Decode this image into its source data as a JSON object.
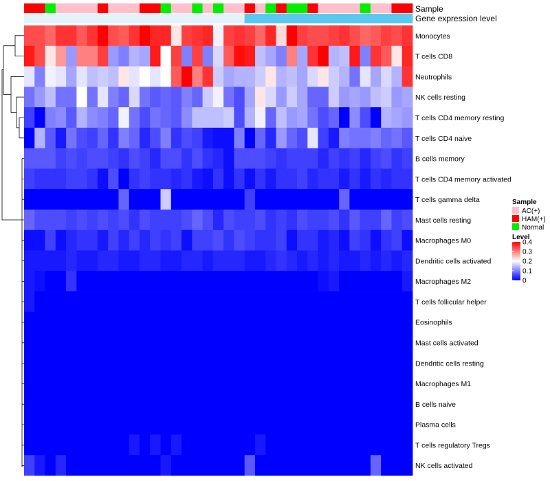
{
  "chart_data": {
    "type": "heatmap",
    "title": "",
    "rows": [
      "Monocytes",
      "T cells CD8",
      "Neutrophils",
      "NK cells resting",
      "T cells CD4 memory resting",
      "T cells CD4 naive",
      "B cells memory",
      "T cells CD4 memory activated",
      "T cells gamma delta",
      "Mast cells resting",
      "Macrophages M0",
      "Dendritic cells activated",
      "Macrophages M2",
      "T cells follicular helper",
      "Eosinophils",
      "Mast cells activated",
      "Dendritic cells resting",
      "Macrophages M1",
      "B cells naive",
      "Plasma cells",
      "T cells regulatory  Tregs",
      "NK cells activated"
    ],
    "annotation_tracks": [
      {
        "name": "Sample",
        "values": [
          "H",
          "H",
          "N",
          "A",
          "A",
          "A",
          "A",
          "H",
          "A",
          "A",
          "A",
          "H",
          "H",
          "N",
          "A",
          "A",
          "N",
          "A",
          "N",
          "A",
          "A",
          "H",
          "A",
          "N",
          "H",
          "N",
          "N",
          "H",
          "A",
          "A",
          "A",
          "A",
          "N",
          "A",
          "A",
          "H",
          "H"
        ]
      },
      {
        "name": "Gene expression level",
        "values": [
          "low",
          "low",
          "low",
          "low",
          "low",
          "low",
          "low",
          "low",
          "low",
          "low",
          "low",
          "low",
          "low",
          "low",
          "low",
          "low",
          "low",
          "low",
          "low",
          "low",
          "low",
          "high",
          "high",
          "high",
          "high",
          "high",
          "high",
          "high",
          "high",
          "high",
          "high",
          "high",
          "high",
          "high",
          "high",
          "high",
          "high"
        ]
      }
    ],
    "annotation_colors": {
      "Sample": {
        "A": "#ffc0cb",
        "H": "#ff0000",
        "N": "#00ee00"
      },
      "Gene expression level": {
        "low": "#e4f3fa",
        "high": "#5bc8ef"
      }
    },
    "values": [
      [
        0.34,
        0.34,
        0.32,
        0.36,
        0.36,
        0.33,
        0.36,
        0.4,
        0.34,
        0.33,
        0.36,
        0.4,
        0.37,
        0.37,
        0.22,
        0.35,
        0.36,
        0.37,
        0.19,
        0.35,
        0.36,
        0.35,
        0.32,
        0.37,
        0.23,
        0.41,
        0.35,
        0.34,
        0.34,
        0.35,
        0.36,
        0.34,
        0.32,
        0.33,
        0.35,
        0.34,
        0.36
      ],
      [
        0.38,
        0.34,
        0.22,
        0.28,
        0.12,
        0.3,
        0.3,
        0.35,
        0.12,
        0.1,
        0.14,
        0.13,
        0.38,
        0.2,
        0.35,
        0.1,
        0.35,
        0.1,
        0.17,
        0.33,
        0.39,
        0.38,
        0.15,
        0.13,
        0.1,
        0.3,
        0.13,
        0.36,
        0.4,
        0.14,
        0.15,
        0.38,
        0.1,
        0.36,
        0.33,
        0.22,
        0.37
      ],
      [
        0.18,
        0.1,
        0.19,
        0.18,
        0.13,
        0.18,
        0.15,
        0.16,
        0.15,
        0.22,
        0.18,
        0.2,
        0.18,
        0.2,
        0.33,
        0.41,
        0.3,
        0.36,
        0.16,
        0.13,
        0.14,
        0.14,
        0.16,
        0.22,
        0.14,
        0.15,
        0.13,
        0.17,
        0.22,
        0.16,
        0.14,
        0.09,
        0.18,
        0.13,
        0.17,
        0.14,
        0.36
      ],
      [
        0.09,
        0.12,
        0.15,
        0.09,
        0.09,
        0.2,
        0.09,
        0.18,
        0.1,
        0.08,
        0.17,
        0.09,
        0.07,
        0.08,
        0.07,
        0.1,
        0.08,
        0.16,
        0.19,
        0.09,
        0.06,
        0.13,
        0.22,
        0.17,
        0.12,
        0.16,
        0.13,
        0.08,
        0.08,
        0.16,
        0.12,
        0.13,
        0.12,
        0.15,
        0.16,
        0.12,
        0.13
      ],
      [
        0.05,
        0.0,
        0.1,
        0.11,
        0.07,
        0.14,
        0.11,
        0.1,
        0.08,
        0.19,
        0.09,
        0.06,
        0.09,
        0.08,
        0.07,
        0.11,
        0.15,
        0.15,
        0.15,
        0.16,
        0.06,
        0.14,
        0.19,
        0.08,
        0.15,
        0.12,
        0.13,
        0.09,
        0.06,
        0.08,
        0.0,
        0.11,
        0.06,
        0.0,
        0.14,
        0.13,
        0.12
      ],
      [
        0.0,
        0.14,
        0.07,
        0.02,
        0.09,
        0.06,
        0.05,
        0.08,
        0.04,
        0.1,
        0.08,
        0.03,
        0.06,
        0.1,
        0.04,
        0.06,
        0.05,
        0.02,
        0.01,
        0.01,
        0.1,
        0.0,
        0.08,
        0.03,
        0.12,
        0.08,
        0.06,
        0.18,
        0.05,
        0.02,
        0.1,
        0.09,
        0.09,
        0.1,
        0.08,
        0.09,
        0.07
      ],
      [
        0.07,
        0.07,
        0.07,
        0.05,
        0.06,
        0.05,
        0.06,
        0.06,
        0.05,
        0.04,
        0.06,
        0.05,
        0.03,
        0.06,
        0.06,
        0.04,
        0.06,
        0.04,
        0.03,
        0.01,
        0.06,
        0.06,
        0.06,
        0.05,
        0.04,
        0.05,
        0.05,
        0.05,
        0.03,
        0.05,
        0.04,
        0.05,
        0.03,
        0.05,
        0.06,
        0.04,
        0.05
      ],
      [
        0.05,
        0.04,
        0.04,
        0.04,
        0.05,
        0.05,
        0.04,
        0.01,
        0.06,
        0.0,
        0.04,
        0.05,
        0.04,
        0.04,
        0.03,
        0.04,
        0.02,
        0.01,
        0.04,
        0.01,
        0.04,
        0.01,
        0.04,
        0.02,
        0.04,
        0.04,
        0.05,
        0.03,
        0.04,
        0.04,
        0.02,
        0.04,
        0.02,
        0.04,
        0.03,
        0.04,
        0.04
      ],
      [
        0.0,
        0.0,
        0.0,
        0.0,
        0.0,
        0.0,
        0.0,
        0.0,
        0.0,
        0.08,
        0.0,
        0.0,
        0.0,
        0.16,
        0.0,
        0.0,
        0.0,
        0.0,
        0.0,
        0.0,
        0.0,
        0.05,
        0.0,
        0.0,
        0.0,
        0.0,
        0.0,
        0.0,
        0.0,
        0.0,
        0.08,
        0.0,
        0.0,
        0.0,
        0.0,
        0.0,
        0.0
      ],
      [
        0.08,
        0.06,
        0.06,
        0.06,
        0.05,
        0.06,
        0.05,
        0.06,
        0.05,
        0.06,
        0.04,
        0.06,
        0.05,
        0.05,
        0.05,
        0.06,
        0.08,
        0.06,
        0.03,
        0.06,
        0.05,
        0.05,
        0.06,
        0.04,
        0.05,
        0.04,
        0.06,
        0.05,
        0.05,
        0.06,
        0.04,
        0.07,
        0.05,
        0.05,
        0.08,
        0.05,
        0.06
      ],
      [
        0.01,
        0.01,
        0.05,
        0.01,
        0.03,
        0.04,
        0.04,
        0.02,
        0.05,
        0.03,
        0.05,
        0.03,
        0.05,
        0.04,
        0.05,
        0.01,
        0.05,
        0.05,
        0.06,
        0.04,
        0.06,
        0.05,
        0.04,
        0.04,
        0.05,
        0.01,
        0.04,
        0.04,
        0.02,
        0.03,
        0.01,
        0.05,
        0.04,
        0.01,
        0.04,
        0.05,
        0.01
      ],
      [
        0.02,
        0.02,
        0.02,
        0.02,
        0.03,
        0.02,
        0.02,
        0.03,
        0.03,
        0.02,
        0.02,
        0.03,
        0.03,
        0.02,
        0.02,
        0.03,
        0.03,
        0.02,
        0.03,
        0.03,
        0.03,
        0.02,
        0.02,
        0.03,
        0.04,
        0.03,
        0.02,
        0.03,
        0.02,
        0.03,
        0.02,
        0.02,
        0.03,
        0.02,
        0.03,
        0.02,
        0.03
      ],
      [
        0.02,
        0.01,
        0.0,
        0.0,
        0.04,
        0.0,
        0.0,
        0.0,
        0.0,
        0.0,
        0.0,
        0.0,
        0.0,
        0.0,
        0.0,
        0.0,
        0.0,
        0.0,
        0.0,
        0.0,
        0.0,
        0.0,
        0.0,
        0.0,
        0.0,
        0.0,
        0.0,
        0.0,
        0.01,
        0.02,
        0.0,
        0.0,
        0.0,
        0.0,
        0.0,
        0.0,
        0.02
      ],
      [
        0.02,
        0.0,
        0.0,
        0.0,
        0.0,
        0.0,
        0.0,
        0.0,
        0.0,
        0.0,
        0.0,
        0.0,
        0.0,
        0.0,
        0.0,
        0.0,
        0.0,
        0.0,
        0.0,
        0.0,
        0.0,
        0.0,
        0.0,
        0.0,
        0.0,
        0.0,
        0.0,
        0.0,
        0.0,
        0.0,
        0.0,
        0.0,
        0.0,
        0.0,
        0.0,
        0.0,
        0.0
      ],
      [
        0.0,
        0.0,
        0.0,
        0.0,
        0.0,
        0.0,
        0.0,
        0.0,
        0.0,
        0.0,
        0.0,
        0.0,
        0.0,
        0.0,
        0.0,
        0.0,
        0.0,
        0.0,
        0.0,
        0.0,
        0.0,
        0.0,
        0.0,
        0.0,
        0.0,
        0.0,
        0.0,
        0.0,
        0.0,
        0.0,
        0.0,
        0.0,
        0.0,
        0.0,
        0.0,
        0.0,
        0.0
      ],
      [
        0.0,
        0.0,
        0.0,
        0.0,
        0.0,
        0.0,
        0.0,
        0.0,
        0.0,
        0.0,
        0.0,
        0.0,
        0.0,
        0.0,
        0.0,
        0.0,
        0.0,
        0.0,
        0.0,
        0.0,
        0.0,
        0.0,
        0.0,
        0.0,
        0.0,
        0.0,
        0.0,
        0.0,
        0.0,
        0.0,
        0.0,
        0.0,
        0.0,
        0.0,
        0.0,
        0.0,
        0.0
      ],
      [
        0.0,
        0.0,
        0.0,
        0.0,
        0.0,
        0.0,
        0.0,
        0.0,
        0.0,
        0.0,
        0.0,
        0.0,
        0.0,
        0.0,
        0.0,
        0.0,
        0.0,
        0.0,
        0.0,
        0.0,
        0.0,
        0.0,
        0.0,
        0.0,
        0.0,
        0.0,
        0.0,
        0.0,
        0.0,
        0.0,
        0.0,
        0.0,
        0.0,
        0.0,
        0.0,
        0.0,
        0.0
      ],
      [
        0.0,
        0.0,
        0.0,
        0.0,
        0.0,
        0.0,
        0.0,
        0.0,
        0.0,
        0.0,
        0.0,
        0.0,
        0.0,
        0.0,
        0.0,
        0.0,
        0.0,
        0.0,
        0.0,
        0.0,
        0.0,
        0.0,
        0.0,
        0.0,
        0.0,
        0.0,
        0.0,
        0.0,
        0.0,
        0.0,
        0.0,
        0.0,
        0.0,
        0.0,
        0.0,
        0.0,
        0.0
      ],
      [
        0.0,
        0.0,
        0.0,
        0.0,
        0.0,
        0.0,
        0.0,
        0.0,
        0.0,
        0.0,
        0.0,
        0.0,
        0.0,
        0.0,
        0.0,
        0.0,
        0.0,
        0.0,
        0.0,
        0.0,
        0.0,
        0.0,
        0.0,
        0.0,
        0.0,
        0.0,
        0.0,
        0.0,
        0.0,
        0.0,
        0.0,
        0.0,
        0.0,
        0.0,
        0.0,
        0.0,
        0.0
      ],
      [
        0.0,
        0.0,
        0.0,
        0.0,
        0.0,
        0.0,
        0.0,
        0.0,
        0.0,
        0.0,
        0.0,
        0.0,
        0.0,
        0.0,
        0.0,
        0.0,
        0.0,
        0.0,
        0.0,
        0.0,
        0.0,
        0.0,
        0.0,
        0.0,
        0.0,
        0.0,
        0.0,
        0.0,
        0.0,
        0.0,
        0.0,
        0.0,
        0.0,
        0.0,
        0.0,
        0.0,
        0.0
      ],
      [
        0.0,
        0.0,
        0.0,
        0.0,
        0.0,
        0.0,
        0.0,
        0.0,
        0.0,
        0.0,
        0.02,
        0.0,
        0.02,
        0.0,
        0.02,
        0.0,
        0.0,
        0.0,
        0.0,
        0.0,
        0.0,
        0.0,
        0.02,
        0.0,
        0.0,
        0.0,
        0.0,
        0.0,
        0.0,
        0.0,
        0.0,
        0.0,
        0.0,
        0.0,
        0.0,
        0.0,
        0.0
      ],
      [
        0.05,
        0.02,
        0.0,
        0.03,
        0.0,
        0.0,
        0.0,
        0.0,
        0.0,
        0.0,
        0.0,
        0.0,
        0.0,
        0.02,
        0.0,
        0.0,
        0.0,
        0.0,
        0.0,
        0.0,
        0.0,
        0.07,
        0.0,
        0.0,
        0.0,
        0.0,
        0.0,
        0.0,
        0.0,
        0.0,
        0.0,
        0.0,
        0.0,
        0.08,
        0.0,
        0.0,
        0.0
      ]
    ],
    "color_scale": {
      "min": 0,
      "max": 0.4,
      "low": "#0000ff",
      "mid": "#ffffff",
      "high": "#ff0000"
    },
    "legend": {
      "sample": {
        "title": "Sample",
        "entries": [
          {
            "label": "AC(+)",
            "color": "#ffc0cb"
          },
          {
            "label": "HAM(+)",
            "color": "#ff0000"
          },
          {
            "label": "Normal",
            "color": "#00ee00"
          }
        ]
      },
      "level": {
        "title": "Level",
        "ticks": [
          "0.4",
          "0.3",
          "0.2",
          "0.1",
          "0"
        ],
        "tick_values": [
          0.4,
          0.3,
          0.2,
          0.1,
          0.0
        ]
      },
      "position": "right"
    },
    "dendrogram": {
      "side": "left",
      "leaves_in_order": true,
      "merges": [
        {
          "left": "Monocytes",
          "right": "T cells CD8",
          "height": 0.55
        },
        {
          "left": "T cells CD4 memory resting",
          "right": "T cells CD4 naive",
          "height": 0.22
        },
        {
          "left": "NK cells resting",
          "right": "merge-1",
          "height": 0.3
        },
        {
          "left": "Neutrophils",
          "right": "merge-2",
          "height": 0.62
        },
        {
          "left": "merge-0",
          "right": "merge-3",
          "height": 1.0
        },
        {
          "left": "merge-4",
          "right": "lower-cluster",
          "height": 1.0
        }
      ]
    }
  }
}
